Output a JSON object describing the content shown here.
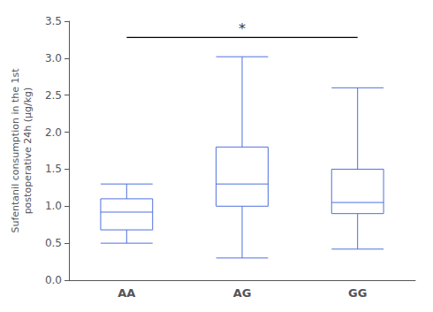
{
  "chart_data": {
    "type": "box",
    "categories": [
      "AA",
      "AG",
      "GG"
    ],
    "values": [
      [
        0.5,
        0.68,
        0.92,
        1.1,
        1.3
      ],
      [
        0.3,
        1.0,
        1.3,
        1.8,
        3.02
      ],
      [
        0.42,
        0.9,
        1.05,
        1.5,
        2.6
      ]
    ],
    "ylabel": "Sufentanil consumption in the 1st\npostoperative 24h (μg/kg)",
    "ylim": [
      0.0,
      3.5
    ],
    "yticks": [
      {
        "value": 0.0,
        "label": "0.0"
      },
      {
        "value": 0.5,
        "label": "0.5"
      },
      {
        "value": 1.0,
        "label": "1.0"
      },
      {
        "value": 1.5,
        "label": "1.5"
      },
      {
        "value": 2.0,
        "label": "2.0"
      },
      {
        "value": 2.5,
        "label": "2.5"
      },
      {
        "value": 3.0,
        "label": "3.0"
      },
      {
        "value": 3.5,
        "label": "3.5"
      }
    ],
    "annotations": [
      {
        "text": "*",
        "x": "AG",
        "y": 3.3,
        "bracket": {
          "from": "AA",
          "to": "GG",
          "y": 3.28
        }
      }
    ],
    "grid": false
  }
}
